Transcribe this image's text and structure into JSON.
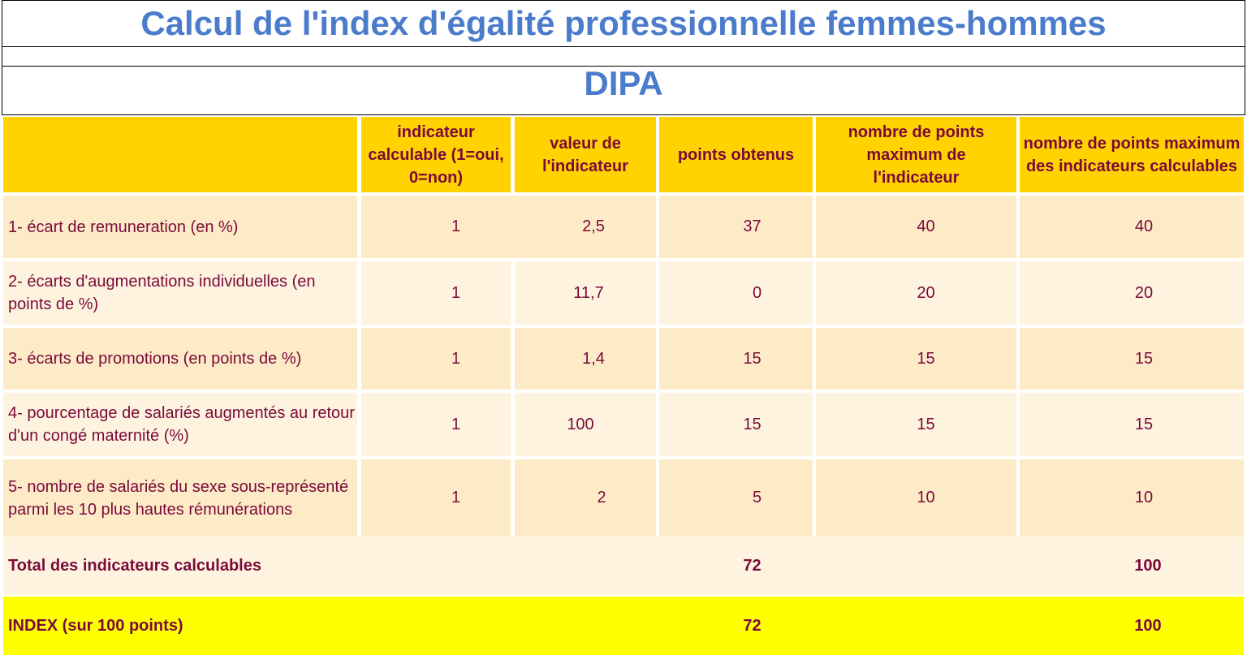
{
  "title": "Calcul de l'index d'égalité professionnelle femmes-hommes",
  "organization": "DIPA",
  "headers": {
    "calculable": "indicateur calculable (1=oui, 0=non)",
    "valeur": "valeur de l'indicateur",
    "points": "points obtenus",
    "max": "nombre de points maximum de l'indicateur",
    "max_calc": "nombre de points maximum des indicateurs calculables"
  },
  "rows": [
    {
      "label": "1- écart de remuneration (en %)",
      "calculable": "1",
      "valeur": "2,5",
      "points": "37",
      "max": "40",
      "max_calc": "40"
    },
    {
      "label": "2- écarts d'augmentations individuelles (en points de %)",
      "calculable": "1",
      "valeur": "11,7",
      "points": "0",
      "max": "20",
      "max_calc": "20"
    },
    {
      "label": "3- écarts de promotions (en points de %)",
      "calculable": "1",
      "valeur": "1,4",
      "points": "15",
      "max": "15",
      "max_calc": "15"
    },
    {
      "label": "4- pourcentage de salariés augmentés au retour d'un congé maternité (%)",
      "calculable": "1",
      "valeur": "100",
      "points": "15",
      "max": "15",
      "max_calc": "15"
    },
    {
      "label": "5- nombre de salariés du sexe sous-représenté parmi les 10 plus hautes rémunérations",
      "calculable": "1",
      "valeur": "2",
      "points": "5",
      "max": "10",
      "max_calc": "10"
    }
  ],
  "total": {
    "label": "Total des indicateurs calculables",
    "points": "72",
    "max_calc": "100"
  },
  "index": {
    "label": "INDEX (sur 100 points)",
    "points": "72",
    "max_calc": "100"
  },
  "colors": {
    "title": "#4a7ccb",
    "header_bg": "#ffd200",
    "text": "#7a0a3a",
    "index_bg": "#ffff00"
  }
}
